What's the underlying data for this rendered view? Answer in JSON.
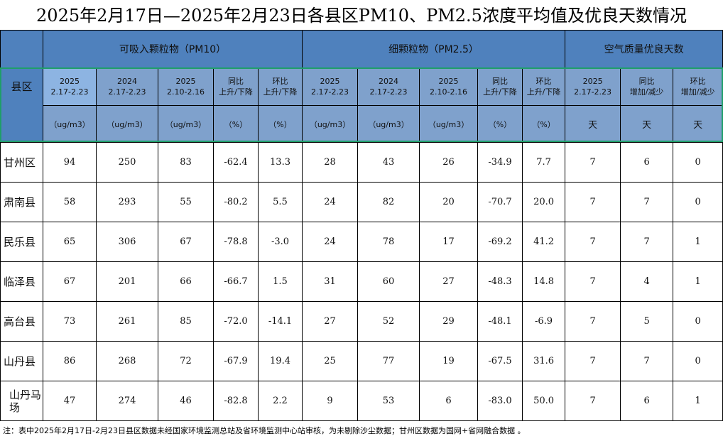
{
  "title": "2025年2月17日—2025年2月23日各县区PM10、PM2.5浓度平均值及优良天数情况",
  "header": {
    "county": "县区",
    "groups": [
      "可吸入颗粒物（PM10）",
      "细颗粒物（PM2.5）",
      "空气质量优良天数"
    ],
    "sub": [
      [
        "2025",
        "2.17-2.23"
      ],
      [
        "2024",
        "2.17-2.23"
      ],
      [
        "2025",
        "2.10-2.16"
      ],
      [
        "同比",
        "上升/下降"
      ],
      [
        "环比",
        "上升/下降"
      ],
      [
        "2025",
        "2.17-2.23"
      ],
      [
        "2024",
        "2.17-2.23"
      ],
      [
        "2025",
        "2.10-2.16"
      ],
      [
        "同比",
        "上升/下降"
      ],
      [
        "环比",
        "上升/下降"
      ],
      [
        "2025",
        "2.17-2.23"
      ],
      [
        "同比",
        "增加/减少"
      ],
      [
        "环比",
        "增加/减少"
      ]
    ],
    "units": [
      "（ug/m3）",
      "（ug/m3）",
      "（ug/m3）",
      "（%）",
      "（%）",
      "（ug/m3）",
      "（ug/m3）",
      "（ug/m3）",
      "（%）",
      "（%）",
      "天",
      "天",
      "天"
    ]
  },
  "rows": [
    {
      "name": "甘州区",
      "v": [
        "94",
        "250",
        "83",
        "-62.4",
        "13.3",
        "28",
        "43",
        "26",
        "-34.9",
        "7.7",
        "7",
        "6",
        "0"
      ]
    },
    {
      "name": "肃南县",
      "v": [
        "58",
        "293",
        "55",
        "-80.2",
        "5.5",
        "24",
        "82",
        "20",
        "-70.7",
        "20.0",
        "7",
        "7",
        "0"
      ]
    },
    {
      "name": "民乐县",
      "v": [
        "65",
        "306",
        "67",
        "-78.8",
        "-3.0",
        "24",
        "78",
        "17",
        "-69.2",
        "41.2",
        "7",
        "7",
        "1"
      ]
    },
    {
      "name": "临泽县",
      "v": [
        "67",
        "201",
        "66",
        "-66.7",
        "1.5",
        "31",
        "60",
        "27",
        "-48.3",
        "14.8",
        "7",
        "4",
        "1"
      ]
    },
    {
      "name": "高台县",
      "v": [
        "73",
        "261",
        "85",
        "-72.0",
        "-14.1",
        "27",
        "52",
        "29",
        "-48.1",
        "-6.9",
        "7",
        "5",
        "0"
      ]
    },
    {
      "name": "山丹县",
      "v": [
        "86",
        "268",
        "72",
        "-67.9",
        "19.4",
        "25",
        "77",
        "19",
        "-67.5",
        "31.6",
        "7",
        "7",
        "0"
      ]
    },
    {
      "name": "山丹马场",
      "v": [
        "47",
        "274",
        "46",
        "-82.8",
        "2.2",
        "9",
        "53",
        "6",
        "-83.0",
        "50.0",
        "7",
        "6",
        "1"
      ]
    }
  ],
  "note": "注：表中2025年2月17日-2月23日县区数据未经国家环境监测总站及省环境监测中心站审核，为未剔除沙尘数据；甘州区数据为国网+省网融合数据 。",
  "colors": {
    "header": "#4f81bd",
    "subheader": "#7fa1cc",
    "selected": "#8db4e2",
    "selection_border": "#1f9e6a"
  }
}
